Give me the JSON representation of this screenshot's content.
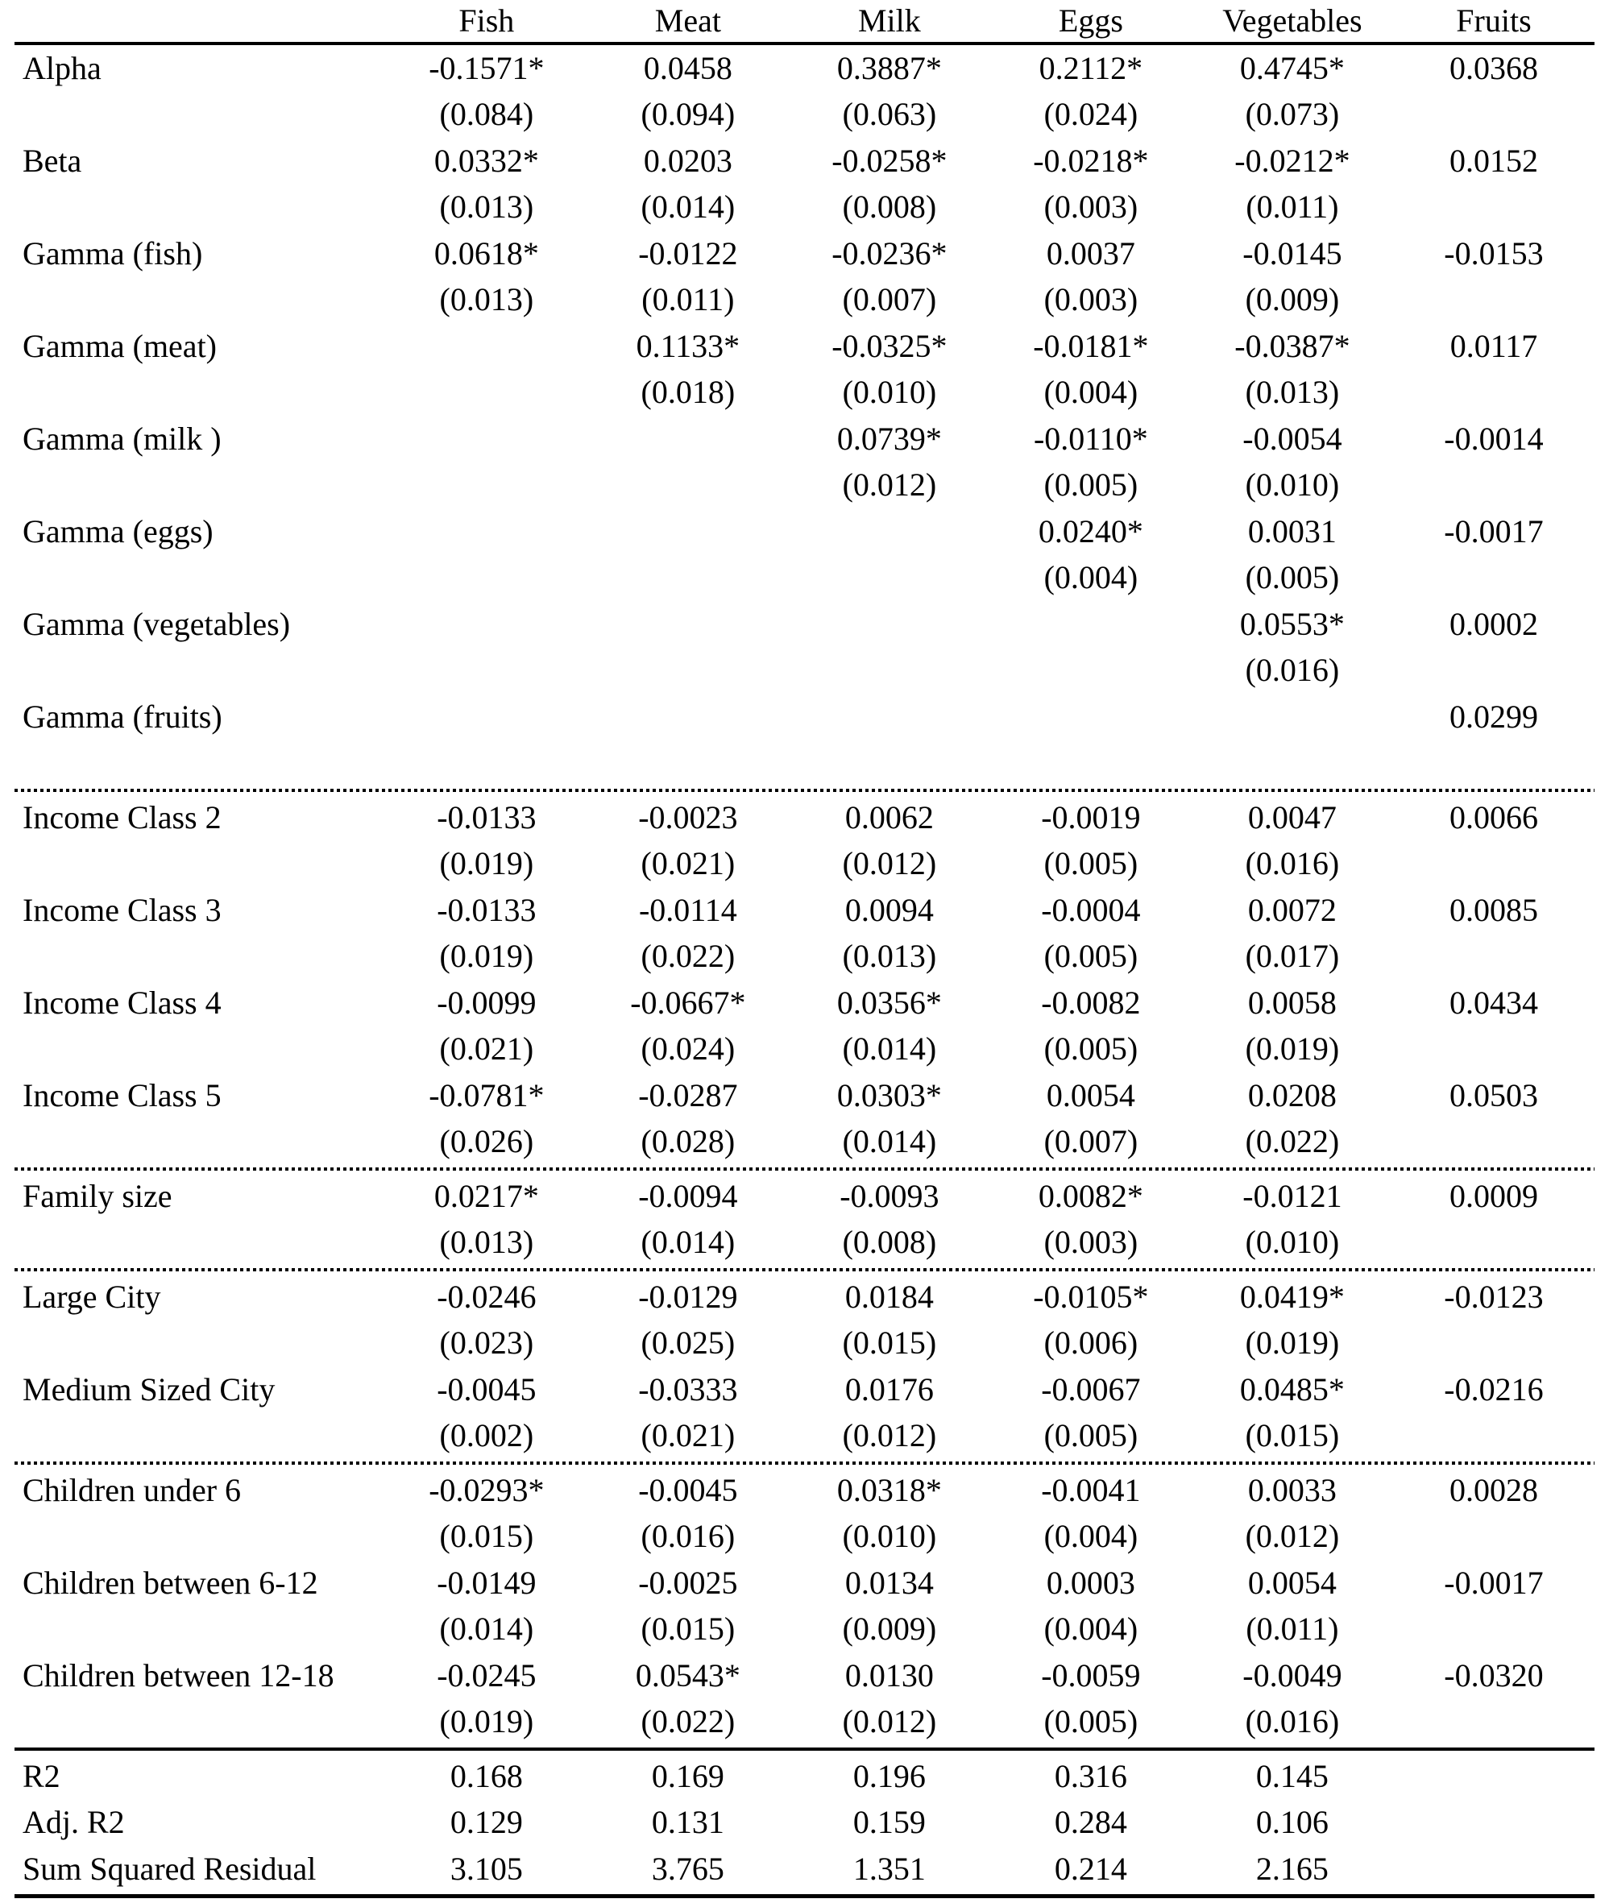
{
  "colors": {
    "text": "#000000",
    "background": "#ffffff",
    "rule": "#000000"
  },
  "table": {
    "columns": [
      "",
      "Fish",
      "Meat",
      "Milk",
      "Eggs",
      "Vegetables",
      "Fruits"
    ],
    "sections": [
      {
        "name": "model-parameters",
        "divider_after": "dotted",
        "rows": [
          {
            "label": "Alpha",
            "est": [
              "-0.1571*",
              "0.0458",
              "0.3887*",
              "0.2112*",
              "0.4745*",
              "0.0368"
            ],
            "se": [
              "(0.084)",
              "(0.094)",
              "(0.063)",
              "(0.024)",
              "(0.073)",
              ""
            ]
          },
          {
            "label": "Beta",
            "est": [
              "0.0332*",
              "0.0203",
              "-0.0258*",
              "-0.0218*",
              "-0.0212*",
              "0.0152"
            ],
            "se": [
              "(0.013)",
              "(0.014)",
              "(0.008)",
              "(0.003)",
              "(0.011)",
              ""
            ]
          },
          {
            "label": "Gamma (fish)",
            "est": [
              "0.0618*",
              "-0.0122",
              "-0.0236*",
              "0.0037",
              "-0.0145",
              "-0.0153"
            ],
            "se": [
              "(0.013)",
              "(0.011)",
              "(0.007)",
              "(0.003)",
              "(0.009)",
              ""
            ]
          },
          {
            "label": "Gamma (meat)",
            "est": [
              "",
              "0.1133*",
              "-0.0325*",
              "-0.0181*",
              "-0.0387*",
              "0.0117"
            ],
            "se": [
              "",
              "(0.018)",
              "(0.010)",
              "(0.004)",
              "(0.013)",
              ""
            ]
          },
          {
            "label": "Gamma (milk )",
            "est": [
              "",
              "",
              "0.0739*",
              "-0.0110*",
              "-0.0054",
              "-0.0014"
            ],
            "se": [
              "",
              "",
              "(0.012)",
              "(0.005)",
              "(0.010)",
              ""
            ]
          },
          {
            "label": "Gamma (eggs)",
            "est": [
              "",
              "",
              "",
              "0.0240*",
              "0.0031",
              "-0.0017"
            ],
            "se": [
              "",
              "",
              "",
              "(0.004)",
              "(0.005)",
              ""
            ]
          },
          {
            "label": "Gamma (vegetables)",
            "est": [
              "",
              "",
              "",
              "",
              "0.0553*",
              "0.0002"
            ],
            "se": [
              "",
              "",
              "",
              "",
              "(0.016)",
              ""
            ]
          },
          {
            "label": "Gamma (fruits)",
            "est": [
              "",
              "",
              "",
              "",
              "",
              "0.0299"
            ],
            "se": [
              "",
              "",
              "",
              "",
              "",
              ""
            ]
          }
        ]
      },
      {
        "name": "income-classes",
        "divider_after": "dotted",
        "rows": [
          {
            "label": "Income Class 2",
            "est": [
              "-0.0133",
              "-0.0023",
              "0.0062",
              "-0.0019",
              "0.0047",
              "0.0066"
            ],
            "se": [
              "(0.019)",
              "(0.021)",
              "(0.012)",
              "(0.005)",
              "(0.016)",
              ""
            ]
          },
          {
            "label": "Income Class 3",
            "est": [
              "-0.0133",
              "-0.0114",
              "0.0094",
              "-0.0004",
              "0.0072",
              "0.0085"
            ],
            "se": [
              "(0.019)",
              "(0.022)",
              "(0.013)",
              "(0.005)",
              "(0.017)",
              ""
            ]
          },
          {
            "label": "Income Class 4",
            "est": [
              "-0.0099",
              "-0.0667*",
              "0.0356*",
              "-0.0082",
              "0.0058",
              "0.0434"
            ],
            "se": [
              "(0.021)",
              "(0.024)",
              "(0.014)",
              "(0.005)",
              "(0.019)",
              ""
            ]
          },
          {
            "label": "Income Class 5",
            "est": [
              "-0.0781*",
              "-0.0287",
              "0.0303*",
              "0.0054",
              "0.0208",
              "0.0503"
            ],
            "se": [
              "(0.026)",
              "(0.028)",
              "(0.014)",
              "(0.007)",
              "(0.022)",
              ""
            ]
          }
        ]
      },
      {
        "name": "family-size",
        "divider_after": "dotted",
        "rows": [
          {
            "label": "Family size",
            "est": [
              "0.0217*",
              "-0.0094",
              "-0.0093",
              "0.0082*",
              "-0.0121",
              "0.0009"
            ],
            "se": [
              "(0.013)",
              "(0.014)",
              "(0.008)",
              "(0.003)",
              "(0.010)",
              ""
            ]
          }
        ]
      },
      {
        "name": "city-size",
        "divider_after": "dotted",
        "rows": [
          {
            "label": "Large City",
            "est": [
              "-0.0246",
              "-0.0129",
              "0.0184",
              "-0.0105*",
              "0.0419*",
              "-0.0123"
            ],
            "se": [
              "(0.023)",
              "(0.025)",
              "(0.015)",
              "(0.006)",
              "(0.019)",
              ""
            ]
          },
          {
            "label": "Medium Sized City",
            "est": [
              "-0.0045",
              "-0.0333",
              "0.0176",
              "-0.0067",
              "0.0485*",
              "-0.0216"
            ],
            "se": [
              "(0.002)",
              "(0.021)",
              "(0.012)",
              "(0.005)",
              "(0.015)",
              ""
            ]
          }
        ]
      },
      {
        "name": "children",
        "divider_after": "solid",
        "rows": [
          {
            "label": "Children under 6",
            "est": [
              "-0.0293*",
              "-0.0045",
              "0.0318*",
              "-0.0041",
              "0.0033",
              "0.0028"
            ],
            "se": [
              "(0.015)",
              "(0.016)",
              "(0.010)",
              "(0.004)",
              "(0.012)",
              ""
            ]
          },
          {
            "label": "Children between 6-12",
            "est": [
              "-0.0149",
              "-0.0025",
              "0.0134",
              "0.0003",
              "0.0054",
              "-0.0017"
            ],
            "se": [
              "(0.014)",
              "(0.015)",
              "(0.009)",
              "(0.004)",
              "(0.011)",
              ""
            ]
          },
          {
            "label": "Children between 12-18",
            "est": [
              "-0.0245",
              "0.0543*",
              "0.0130",
              "-0.0059",
              "-0.0049",
              "-0.0320"
            ],
            "se": [
              "(0.019)",
              "(0.022)",
              "(0.012)",
              "(0.005)",
              "(0.016)",
              ""
            ]
          }
        ]
      },
      {
        "name": "fit-statistics",
        "divider_after": "bold",
        "rows": [
          {
            "label": "R2",
            "est": [
              "0.168",
              "0.169",
              "0.196",
              "0.316",
              "0.145",
              ""
            ],
            "se": null
          },
          {
            "label": "Adj. R2",
            "est": [
              "0.129",
              "0.131",
              "0.159",
              "0.284",
              "0.106",
              ""
            ],
            "se": null
          },
          {
            "label": "Sum Squared Residual",
            "est": [
              "3.105",
              "3.765",
              "1.351",
              "0.214",
              "2.165",
              ""
            ],
            "se": null
          }
        ]
      }
    ]
  }
}
